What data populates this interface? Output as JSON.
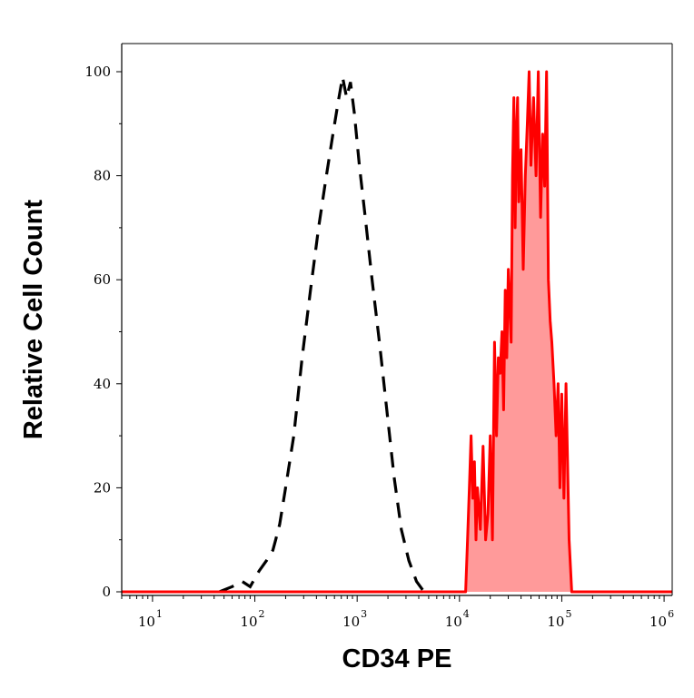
{
  "chart_data": {
    "type": "histogram",
    "xlabel": "CD34 PE",
    "ylabel": "Relative Cell Count",
    "x_scale": "log",
    "xlim": [
      5,
      1200000
    ],
    "ylim": [
      0,
      100
    ],
    "x_ticks": [
      {
        "value": 10,
        "base": "10",
        "exp": "1"
      },
      {
        "value": 100,
        "base": "10",
        "exp": "2"
      },
      {
        "value": 1000,
        "base": "10",
        "exp": "3"
      },
      {
        "value": 10000,
        "base": "10",
        "exp": "4"
      },
      {
        "value": 100000,
        "base": "10",
        "exp": "5"
      },
      {
        "value": 1000000,
        "base": "10",
        "exp": "6"
      }
    ],
    "y_ticks": [
      "0",
      "20",
      "40",
      "60",
      "80",
      "100"
    ],
    "grid": false,
    "series": [
      {
        "style": "dashed",
        "color": "#000000",
        "filled": false,
        "points": [
          [
            45,
            0
          ],
          [
            60,
            1
          ],
          [
            75,
            2
          ],
          [
            90,
            1
          ],
          [
            110,
            4
          ],
          [
            130,
            6
          ],
          [
            150,
            8
          ],
          [
            160,
            10
          ],
          [
            175,
            13
          ],
          [
            200,
            20
          ],
          [
            240,
            30
          ],
          [
            290,
            45
          ],
          [
            350,
            58
          ],
          [
            420,
            70
          ],
          [
            500,
            80
          ],
          [
            580,
            88
          ],
          [
            650,
            94
          ],
          [
            720,
            99
          ],
          [
            790,
            95
          ],
          [
            860,
            98
          ],
          [
            940,
            92
          ],
          [
            1050,
            82
          ],
          [
            1200,
            72
          ],
          [
            1400,
            60
          ],
          [
            1650,
            48
          ],
          [
            1950,
            35
          ],
          [
            2300,
            22
          ],
          [
            2700,
            12
          ],
          [
            3200,
            6
          ],
          [
            3800,
            2
          ],
          [
            4500,
            0
          ]
        ]
      },
      {
        "style": "solid",
        "color": "#ff0000",
        "filled": true,
        "fill": "#ff9a9a",
        "points": [
          [
            5,
            0
          ],
          [
            11500,
            0
          ],
          [
            12000,
            10
          ],
          [
            12500,
            20
          ],
          [
            13000,
            30
          ],
          [
            13500,
            18
          ],
          [
            14000,
            25
          ],
          [
            14500,
            10
          ],
          [
            15000,
            20
          ],
          [
            16000,
            12
          ],
          [
            17000,
            28
          ],
          [
            18000,
            10
          ],
          [
            19000,
            15
          ],
          [
            20000,
            30
          ],
          [
            21000,
            10
          ],
          [
            22000,
            48
          ],
          [
            23000,
            30
          ],
          [
            24000,
            45
          ],
          [
            25000,
            42
          ],
          [
            26000,
            50
          ],
          [
            27000,
            35
          ],
          [
            28000,
            58
          ],
          [
            29000,
            45
          ],
          [
            30000,
            62
          ],
          [
            31000,
            55
          ],
          [
            32000,
            48
          ],
          [
            33000,
            80
          ],
          [
            34000,
            95
          ],
          [
            35000,
            70
          ],
          [
            36000,
            88
          ],
          [
            37000,
            95
          ],
          [
            38000,
            75
          ],
          [
            40000,
            85
          ],
          [
            42000,
            62
          ],
          [
            44000,
            80
          ],
          [
            46000,
            90
          ],
          [
            48000,
            100
          ],
          [
            50000,
            82
          ],
          [
            53000,
            95
          ],
          [
            56000,
            80
          ],
          [
            59000,
            100
          ],
          [
            62000,
            72
          ],
          [
            65000,
            88
          ],
          [
            68000,
            78
          ],
          [
            71000,
            100
          ],
          [
            74000,
            60
          ],
          [
            77000,
            52
          ],
          [
            80000,
            48
          ],
          [
            84000,
            40
          ],
          [
            88000,
            30
          ],
          [
            92000,
            40
          ],
          [
            96000,
            20
          ],
          [
            100000,
            38
          ],
          [
            105000,
            18
          ],
          [
            110000,
            40
          ],
          [
            118000,
            10
          ],
          [
            125000,
            0
          ],
          [
            1200000,
            0
          ]
        ]
      }
    ]
  }
}
